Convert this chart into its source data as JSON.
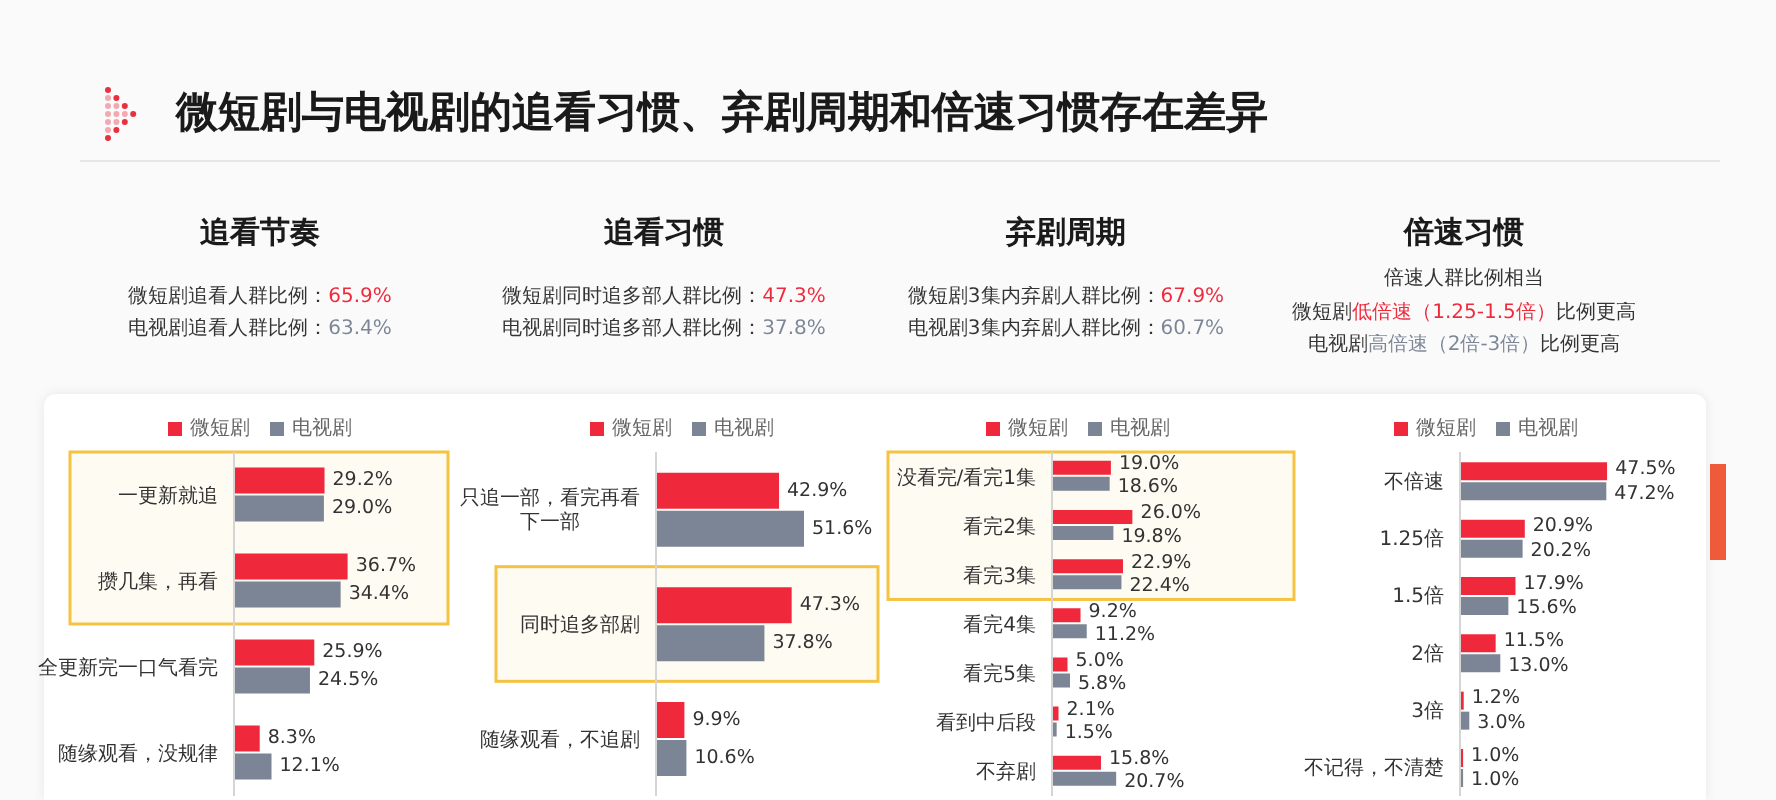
{
  "chart_data": [
    {
      "type": "other",
      "title": "微短剧与电视剧的追看习惯、弃剧周期和倍速习惯存在差异"
    },
    {
      "type": "bar",
      "orientation": "horizontal",
      "title": "追看节奏",
      "annotations": [
        "微短剧追看人群比例：65.9%",
        "电视剧追看人群比例：63.4%"
      ],
      "categories": [
        "一更新就追",
        "攒几集，再看",
        "全更新完一口气看完",
        "随缘观看，没规律"
      ],
      "series": [
        {
          "name": "微短剧",
          "color": "#f0283c",
          "values": [
            29.2,
            36.7,
            25.9,
            8.3
          ],
          "value_labels": [
            "29.2%",
            "36.7%",
            "25.9%",
            "8.3%"
          ]
        },
        {
          "name": "电视剧",
          "color": "#7b8595",
          "values": [
            29.0,
            34.4,
            24.5,
            12.1
          ],
          "value_labels": [
            "29.0%",
            "34.4%",
            "24.5%",
            "12.1%"
          ]
        }
      ],
      "legend": "top",
      "bands": [
        {
          "axis": "y",
          "from": "一更新就追",
          "to": "攒几集，再看",
          "color": "#f5c342"
        }
      ]
    },
    {
      "type": "bar",
      "orientation": "horizontal",
      "title": "追看习惯",
      "annotations": [
        "微短剧同时追多部人群比例：47.3%",
        "电视剧同时追多部人群比例：37.8%"
      ],
      "categories": [
        "只追一部，看完再看下一部",
        "同时追多部剧",
        "随缘观看，不追剧"
      ],
      "series": [
        {
          "name": "微短剧",
          "color": "#f0283c",
          "values": [
            42.9,
            47.3,
            9.9
          ],
          "value_labels": [
            "42.9%",
            "47.3%",
            "9.9%"
          ]
        },
        {
          "name": "电视剧",
          "color": "#7b8595",
          "values": [
            51.6,
            37.8,
            10.6
          ],
          "value_labels": [
            "51.6%",
            "37.8%",
            "10.6%"
          ]
        }
      ],
      "legend": "top",
      "bands": [
        {
          "axis": "y",
          "from": "同时追多部剧",
          "to": "同时追多部剧",
          "color": "#f5c342"
        }
      ]
    },
    {
      "type": "bar",
      "orientation": "horizontal",
      "title": "弃剧周期",
      "annotations": [
        "微短剧3集内弃剧人群比例：67.9%",
        "电视剧3集内弃剧人群比例：60.7%"
      ],
      "categories": [
        "没看完/看完1集",
        "看完2集",
        "看完3集",
        "看完4集",
        "看完5集",
        "看到中后段",
        "不弃剧"
      ],
      "series": [
        {
          "name": "微短剧",
          "color": "#f0283c",
          "values": [
            19.0,
            26.0,
            22.9,
            9.2,
            5.0,
            2.1,
            15.8
          ],
          "value_labels": [
            "19.0%",
            "26.0%",
            "22.9%",
            "9.2%",
            "5.0%",
            "2.1%",
            "15.8%"
          ]
        },
        {
          "name": "电视剧",
          "color": "#7b8595",
          "values": [
            18.6,
            19.8,
            22.4,
            11.2,
            5.8,
            1.5,
            20.7
          ],
          "value_labels": [
            "18.6%",
            "19.8%",
            "22.4%",
            "11.2%",
            "5.8%",
            "1.5%",
            "20.7%"
          ]
        }
      ],
      "legend": "top",
      "bands": [
        {
          "axis": "y",
          "from": "没看完/看完1集",
          "to": "看完3集",
          "color": "#f5c342"
        }
      ]
    },
    {
      "type": "bar",
      "orientation": "horizontal",
      "title": "倍速习惯",
      "annotations": [
        "倍速人群比例相当",
        "微短剧低倍速（1.25-1.5倍）比例更高",
        "电视剧高倍速（2倍-3倍）比例更高"
      ],
      "categories": [
        "不倍速",
        "1.25倍",
        "1.5倍",
        "2倍",
        "3倍",
        "不记得，不清楚"
      ],
      "series": [
        {
          "name": "微短剧",
          "color": "#f0283c",
          "values": [
            47.5,
            20.9,
            17.9,
            11.5,
            1.2,
            1.0
          ],
          "value_labels": [
            "47.5%",
            "20.9%",
            "17.9%",
            "11.5%",
            "1.2%",
            "1.0%"
          ]
        },
        {
          "name": "电视剧",
          "color": "#7b8595",
          "values": [
            47.2,
            20.2,
            15.6,
            13.0,
            3.0,
            1.0
          ],
          "value_labels": [
            "47.2%",
            "20.2%",
            "15.6%",
            "13.0%",
            "3.0%",
            "1.0%"
          ]
        }
      ],
      "legend": "top"
    }
  ]
}
